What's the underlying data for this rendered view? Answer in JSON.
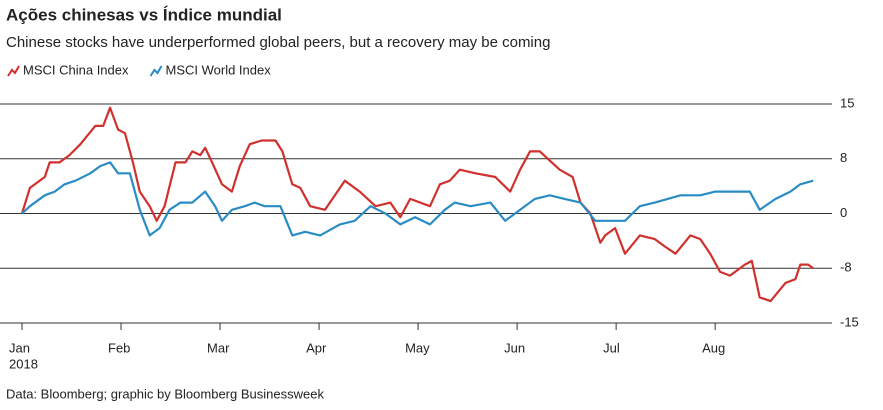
{
  "chart_data": {
    "type": "line",
    "title": "Ações chinesas vs Índice mundial",
    "subtitle": "Chinese stocks have underperformed global peers, but a recovery may be coming",
    "source": "Data: Bloomberg; graphic by Bloomberg Businessweek",
    "xtick_sublabel": "2018",
    "xlim": [
      0,
      8.18
    ],
    "xticks": [
      {
        "value": 0,
        "label": "Jan"
      },
      {
        "value": 1,
        "label": "Feb"
      },
      {
        "value": 2,
        "label": "Mar"
      },
      {
        "value": 3,
        "label": "Apr"
      },
      {
        "value": 4,
        "label": "May"
      },
      {
        "value": 5,
        "label": "Jun"
      },
      {
        "value": 6,
        "label": "Jul"
      },
      {
        "value": 7,
        "label": "Aug"
      }
    ],
    "ylim": [
      -15,
      15
    ],
    "yticks": [
      15,
      {
        "value": 7.5,
        "label": "8"
      },
      0,
      {
        "value": -7.5,
        "label": "-8"
      },
      -15
    ],
    "grid": true,
    "legend": "top-left",
    "series": [
      {
        "name": "MSCI China Index",
        "color": "#d0312d",
        "x": [
          0,
          0.08,
          0.23,
          0.28,
          0.38,
          0.48,
          0.59,
          0.74,
          0.82,
          0.89,
          0.97,
          1.04,
          1.12,
          1.19,
          1.29,
          1.36,
          1.44,
          1.55,
          1.65,
          1.72,
          1.8,
          1.85,
          1.92,
          2.02,
          2.12,
          2.2,
          2.3,
          2.42,
          2.56,
          2.63,
          2.73,
          2.81,
          2.91,
          3.06,
          3.26,
          3.41,
          3.57,
          3.72,
          3.82,
          3.92,
          4.12,
          4.22,
          4.32,
          4.42,
          4.58,
          4.78,
          4.93,
          5.03,
          5.13,
          5.23,
          5.31,
          5.43,
          5.56,
          5.64,
          5.74,
          5.84,
          5.89,
          5.99,
          6.09,
          6.24,
          6.39,
          6.49,
          6.6,
          6.75,
          6.85,
          6.95,
          7.05,
          7.15,
          7.3,
          7.37,
          7.45,
          7.56,
          7.71,
          7.81,
          7.86,
          7.94,
          7.99
        ],
        "values": [
          0,
          3.5,
          5,
          7,
          7,
          8,
          9.5,
          12,
          12,
          14.5,
          11.5,
          11,
          7,
          3,
          1,
          -1,
          1,
          7,
          7,
          8.5,
          8,
          9,
          7,
          4,
          3,
          6.5,
          9.5,
          10,
          10,
          8.5,
          4,
          3.5,
          1,
          0.5,
          4.5,
          3,
          1,
          1.5,
          -0.5,
          2,
          1,
          4,
          4.5,
          6,
          5.5,
          5,
          3,
          6,
          8.5,
          8.5,
          7.5,
          6,
          5,
          1.5,
          0,
          -4,
          -3,
          -2,
          -5.5,
          -3,
          -3.5,
          -4.5,
          -5.5,
          -3,
          -3.5,
          -5.5,
          -8,
          -8.5,
          -7,
          -6.5,
          -11.5,
          -12,
          -9.5,
          -9,
          -7,
          -7,
          -7.5
        ]
      },
      {
        "name": "MSCI World Index",
        "color": "#2a8cc4",
        "x": [
          0,
          0.08,
          0.23,
          0.33,
          0.43,
          0.54,
          0.69,
          0.79,
          0.89,
          0.97,
          1.09,
          1.19,
          1.29,
          1.39,
          1.49,
          1.6,
          1.72,
          1.85,
          1.95,
          2.02,
          2.12,
          2.25,
          2.35,
          2.45,
          2.61,
          2.73,
          2.86,
          3.01,
          3.21,
          3.36,
          3.52,
          3.67,
          3.82,
          3.97,
          4.12,
          4.27,
          4.37,
          4.53,
          4.73,
          4.88,
          5.03,
          5.18,
          5.33,
          5.48,
          5.64,
          5.79,
          5.94,
          6.09,
          6.24,
          6.39,
          6.65,
          6.85,
          7.0,
          7.2,
          7.35,
          7.45,
          7.61,
          7.76,
          7.86,
          7.99
        ],
        "values": [
          0,
          1,
          2.5,
          3,
          4,
          4.5,
          5.5,
          6.5,
          7,
          5.5,
          5.5,
          0.5,
          -3,
          -2,
          0.5,
          1.5,
          1.5,
          3,
          1,
          -1,
          0.5,
          1,
          1.5,
          1,
          1,
          -3,
          -2.5,
          -3,
          -1.5,
          -1,
          1,
          0,
          -1.5,
          -0.5,
          -1.5,
          0.5,
          1.5,
          1,
          1.5,
          -1,
          0.5,
          2,
          2.5,
          2,
          1.5,
          -1,
          -1,
          -1,
          1,
          1.5,
          2.5,
          2.5,
          3,
          3,
          3,
          0.5,
          2,
          3,
          4,
          4.5
        ]
      }
    ]
  }
}
